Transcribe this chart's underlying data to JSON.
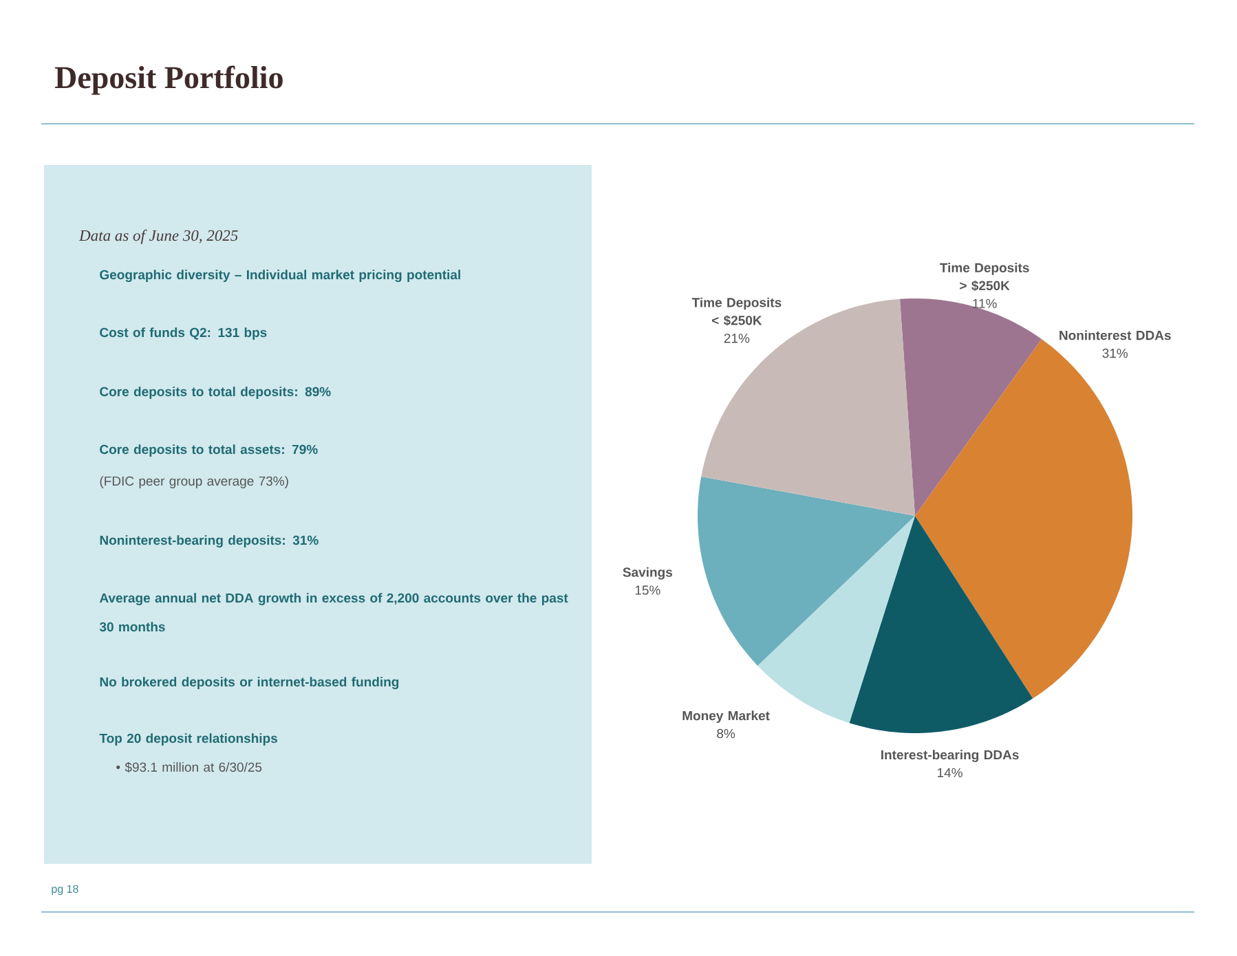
{
  "chart_data": [
    {
      "type": "other",
      "title": "Deposit Portfolio",
      "subtitle": "Data as of June 30, 2025",
      "annotations": [
        "Geographic diversity – Individual market pricing potential",
        "Cost of funds Q2: 131 bps",
        "Core deposits to total deposits: 89%",
        "Core deposits to total assets: 79%",
        "(FDIC peer group average 73%)",
        "Noninterest-bearing deposits:  31%",
        "Average annual net DDA growth in excess of 2,200 accounts over the past 30 months",
        "No brokered deposits or internet-based funding",
        "Top 20 deposit relationships",
        "• $93.1 million at 6/30/25",
        "pg 18"
      ]
    },
    {
      "type": "pie",
      "categories": [
        "Time Deposits > $250K",
        "Noninterest DDAs",
        "Interest-bearing DDAs",
        "Money Market",
        "Savings",
        "Time Deposits < $250K"
      ],
      "values": [
        11,
        31,
        14,
        8,
        15,
        21
      ],
      "colors": [
        "#9e7590",
        "#d98232",
        "#0e5b66",
        "#bce1e4",
        "#6cafbd",
        "#c8bbb7"
      ],
      "value_labels": [
        "11%",
        "31%",
        "14%",
        "8%",
        "15%",
        "21%"
      ]
    }
  ]
}
